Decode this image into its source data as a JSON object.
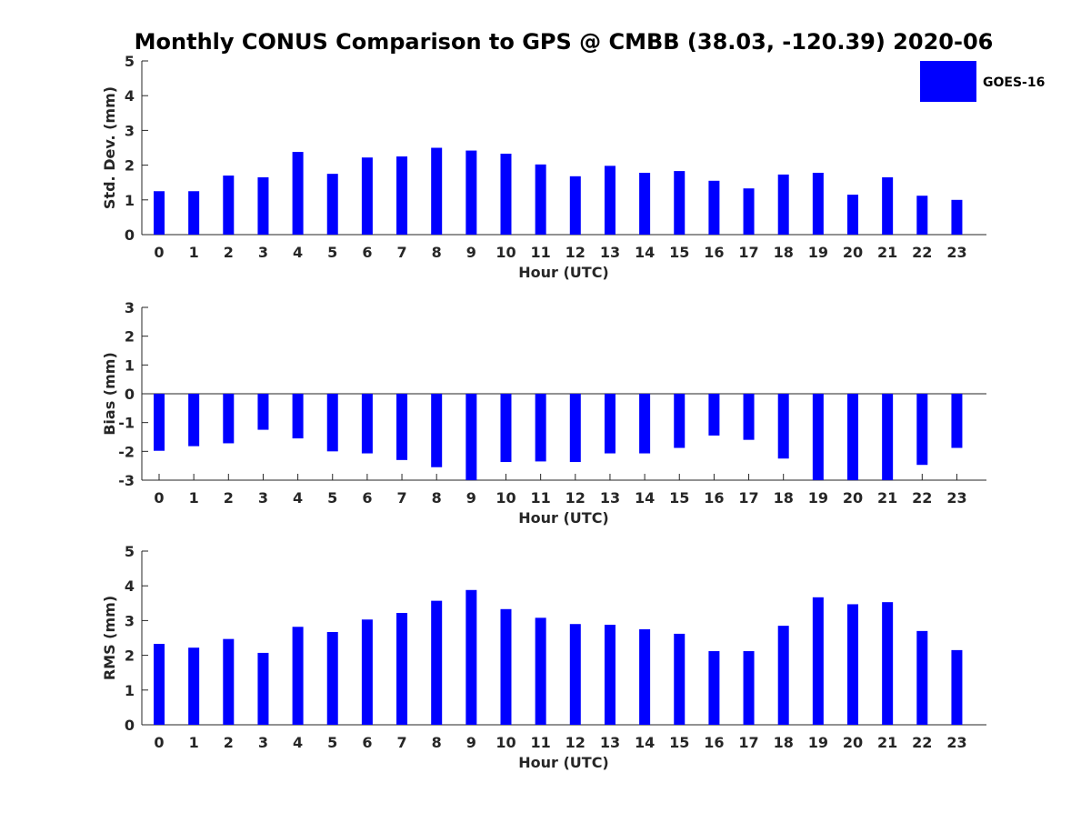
{
  "chart_data": {
    "title": "Monthly CONUS Comparison to GPS @ CMBB (38.03, -120.39) 2020-06",
    "legend": {
      "label": "GOES-16",
      "color": "#0000ff",
      "placement": "top-right"
    },
    "xlabel": "Hour (UTC)",
    "categories": [
      "0",
      "1",
      "2",
      "3",
      "4",
      "5",
      "6",
      "7",
      "8",
      "9",
      "10",
      "11",
      "12",
      "13",
      "14",
      "15",
      "16",
      "17",
      "18",
      "19",
      "20",
      "21",
      "22",
      "23"
    ],
    "panels": [
      {
        "type": "bar",
        "ylabel": "Std. Dev. (mm)",
        "ylim": [
          0,
          5
        ],
        "yticks": [
          "0",
          "1",
          "2",
          "3",
          "4",
          "5"
        ],
        "series": [
          {
            "name": "GOES-16",
            "values": [
              1.25,
              1.25,
              1.7,
              1.65,
              2.38,
              1.75,
              2.22,
              2.25,
              2.5,
              2.42,
              2.33,
              2.02,
              1.68,
              1.98,
              1.78,
              1.83,
              1.55,
              1.33,
              1.73,
              1.78,
              1.15,
              1.65,
              1.12,
              1.0
            ]
          }
        ]
      },
      {
        "type": "bar",
        "ylabel": "Bias (mm)",
        "ylim": [
          -3,
          3
        ],
        "yticks": [
          "-3",
          "-2",
          "-1",
          "0",
          "1",
          "2",
          "3"
        ],
        "series": [
          {
            "name": "GOES-16",
            "values": [
              -1.98,
              -1.82,
              -1.72,
              -1.25,
              -1.55,
              -2.0,
              -2.07,
              -2.3,
              -2.55,
              -3.0,
              -2.37,
              -2.35,
              -2.37,
              -2.07,
              -2.07,
              -1.88,
              -1.45,
              -1.6,
              -2.25,
              -3.0,
              -3.0,
              -3.0,
              -2.47,
              -1.88
            ]
          }
        ]
      },
      {
        "type": "bar",
        "ylabel": "RMS (mm)",
        "ylim": [
          0,
          5
        ],
        "yticks": [
          "0",
          "1",
          "2",
          "3",
          "4",
          "5"
        ],
        "series": [
          {
            "name": "GOES-16",
            "values": [
              2.33,
              2.22,
              2.47,
              2.07,
              2.82,
              2.67,
              3.03,
              3.22,
              3.57,
              3.88,
              3.33,
              3.08,
              2.9,
              2.88,
              2.75,
              2.62,
              2.12,
              2.12,
              2.85,
              3.67,
              3.47,
              3.53,
              2.7,
              2.15
            ]
          }
        ]
      }
    ]
  }
}
